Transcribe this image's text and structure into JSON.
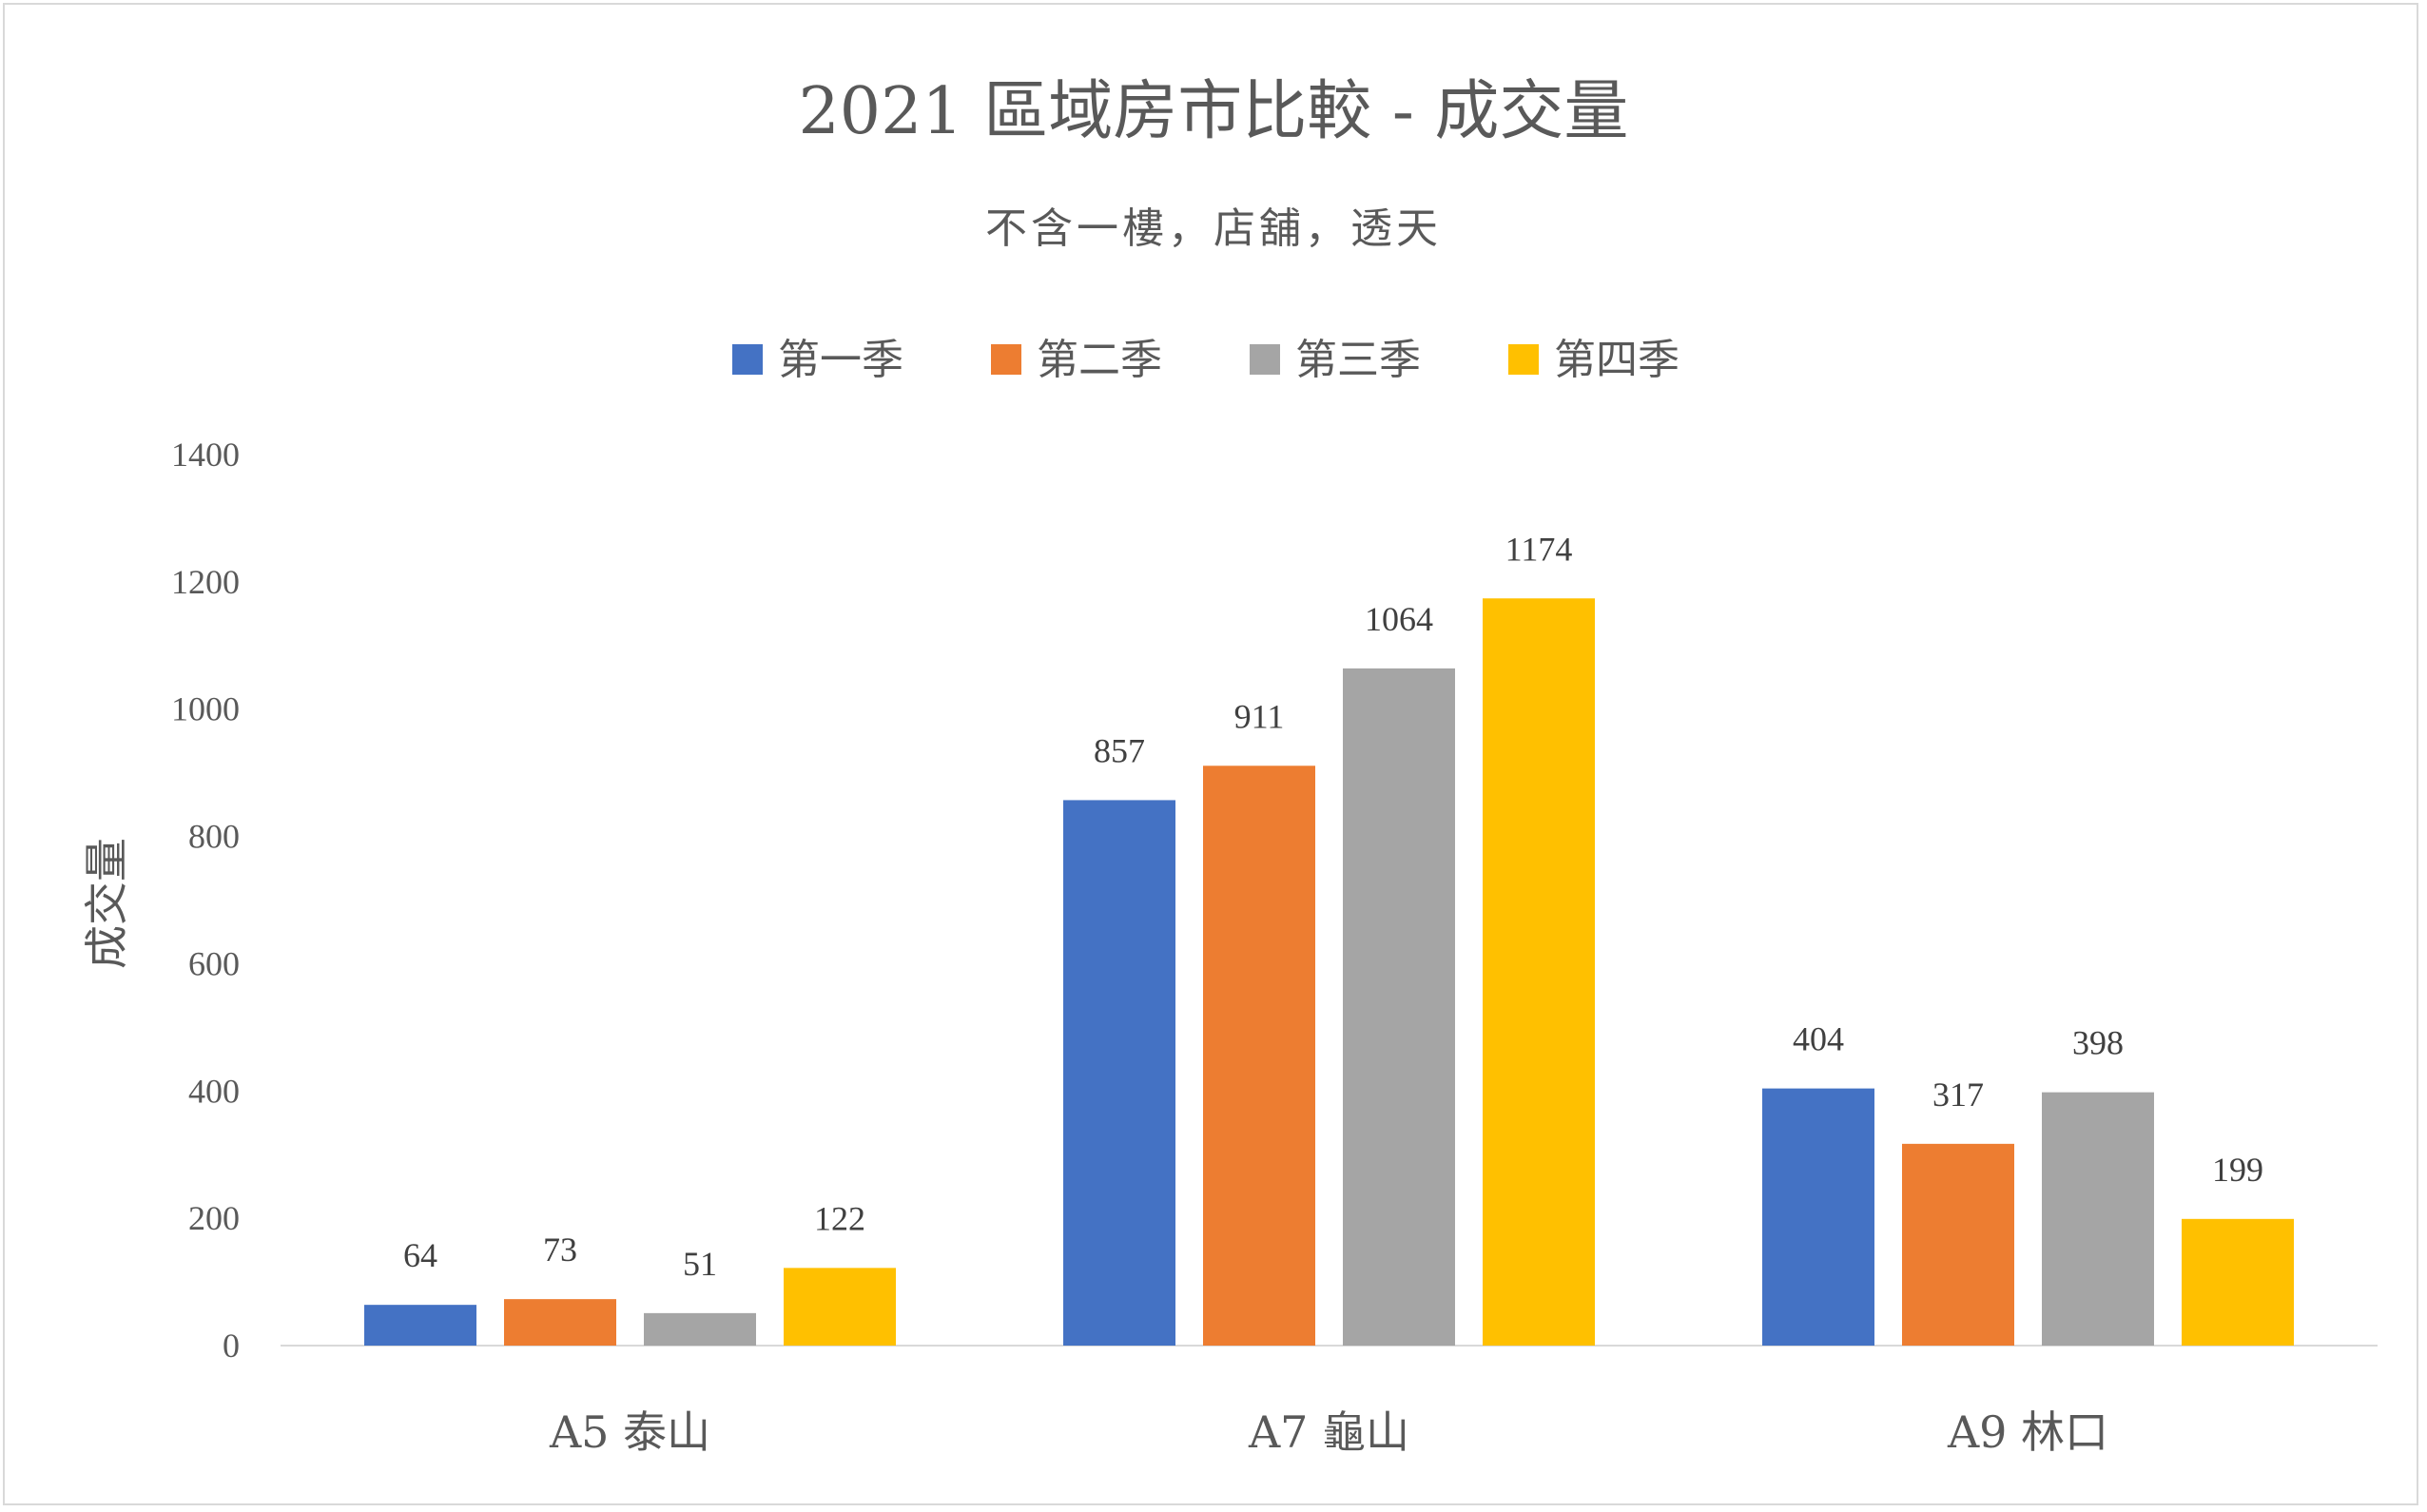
{
  "chart_data": {
    "type": "bar",
    "title": "2021 區域房市比較 - 成交量",
    "subtitle": "不含一樓，店舖，透天",
    "xlabel": "",
    "ylabel": "成交量",
    "ylim": [
      0,
      1400
    ],
    "yticks": [
      0,
      200,
      400,
      600,
      800,
      1000,
      1200,
      1400
    ],
    "grid": false,
    "legend_position": "top",
    "categories": [
      "A5 泰山",
      "A7 龜山",
      "A9 林口"
    ],
    "series": [
      {
        "name": "第一季",
        "color": "#4472C4",
        "values": [
          64,
          857,
          404
        ]
      },
      {
        "name": "第二季",
        "color": "#ED7D31",
        "values": [
          73,
          911,
          317
        ]
      },
      {
        "name": "第三季",
        "color": "#A5A5A5",
        "values": [
          51,
          1064,
          398
        ]
      },
      {
        "name": "第四季",
        "color": "#FFC000",
        "values": [
          122,
          1174,
          199
        ]
      }
    ]
  }
}
